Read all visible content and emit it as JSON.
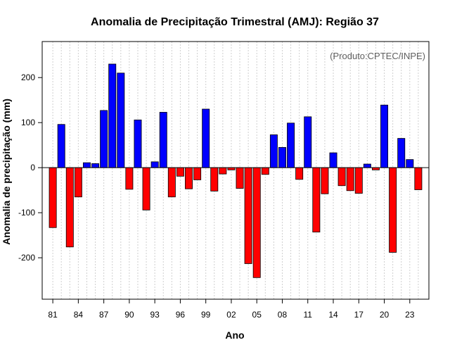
{
  "chart_data": {
    "type": "bar",
    "title": "Anomalia de Precipitação Trimestral (AMJ): Região 37",
    "xlabel": "Ano",
    "ylabel": "Anomalia de precipitação (mm)",
    "annotation": "(Produto:CPTEC/INPE)",
    "ylim": [
      -292,
      280
    ],
    "yticks": [
      -200,
      -100,
      0,
      100,
      200
    ],
    "xtick_labels": [
      "81",
      "84",
      "87",
      "90",
      "93",
      "96",
      "99",
      "02",
      "05",
      "08",
      "11",
      "14",
      "17",
      "20",
      "23"
    ],
    "xtick_every": 3,
    "grid": true,
    "positive_color": "#0000ff",
    "negative_color": "#ff0000",
    "categories": [
      "81",
      "82",
      "83",
      "84",
      "85",
      "86",
      "87",
      "88",
      "89",
      "90",
      "91",
      "92",
      "93",
      "94",
      "95",
      "96",
      "97",
      "98",
      "99",
      "00",
      "01",
      "02",
      "03",
      "04",
      "05",
      "06",
      "07",
      "08",
      "09",
      "10",
      "11",
      "12",
      "13",
      "14",
      "15",
      "16",
      "17",
      "18",
      "19",
      "20",
      "21",
      "22",
      "23",
      "24"
    ],
    "values": [
      -133,
      96,
      -176,
      -65,
      11,
      9,
      127,
      230,
      210,
      -48,
      106,
      -94,
      13,
      123,
      -65,
      -19,
      -47,
      -27,
      130,
      -52,
      -14,
      -5,
      -46,
      -213,
      -244,
      -15,
      73,
      45,
      99,
      -26,
      113,
      -143,
      -58,
      33,
      -40,
      -51,
      -57,
      8,
      -5,
      139,
      -188,
      65,
      18,
      -49
    ]
  }
}
